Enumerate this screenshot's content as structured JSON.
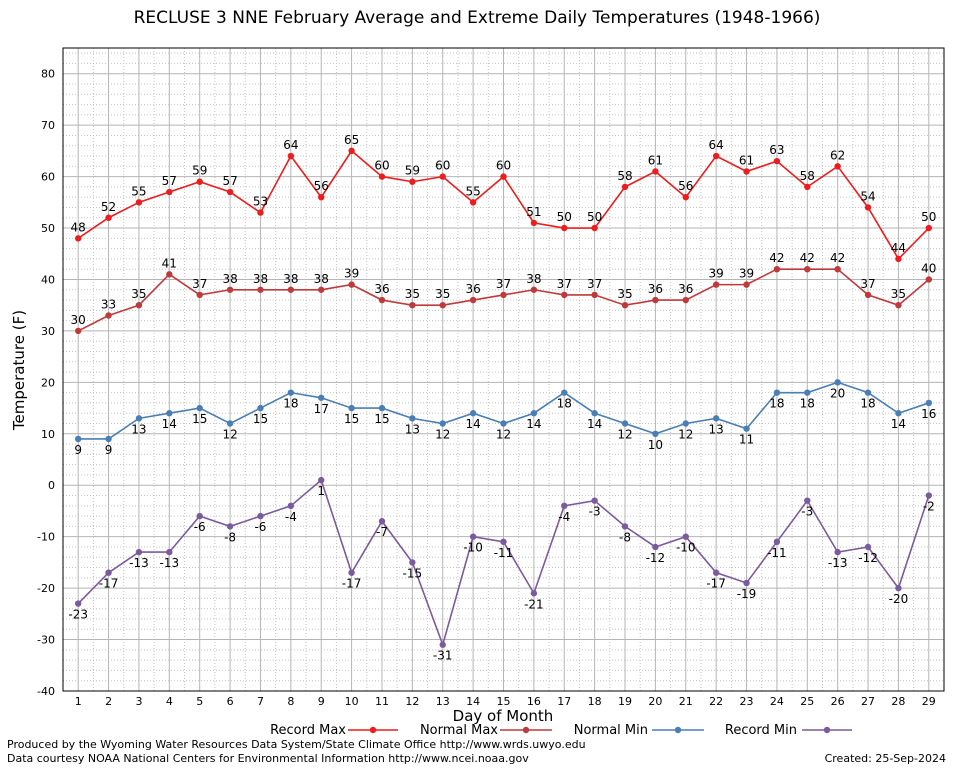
{
  "chart_data": {
    "type": "line",
    "title": "RECLUSE 3 NNE February Average and Extreme Daily Temperatures (1948-1966)",
    "xlabel": "Day of Month",
    "ylabel": "Temperature (F)",
    "ylim": [
      -40,
      85
    ],
    "yticks": [
      -40,
      -30,
      -20,
      -10,
      0,
      10,
      20,
      30,
      40,
      50,
      60,
      70,
      80
    ],
    "grid": true,
    "x": [
      1,
      2,
      3,
      4,
      5,
      6,
      7,
      8,
      9,
      10,
      11,
      12,
      13,
      14,
      15,
      16,
      17,
      18,
      19,
      20,
      21,
      22,
      23,
      24,
      25,
      26,
      27,
      28,
      29
    ],
    "series": [
      {
        "name": "Record Max",
        "color": "#ee1c1c",
        "label_pos": "above",
        "values": [
          48,
          52,
          55,
          57,
          59,
          57,
          53,
          64,
          56,
          65,
          60,
          59,
          60,
          55,
          60,
          51,
          50,
          50,
          58,
          61,
          56,
          64,
          61,
          63,
          58,
          62,
          54,
          44,
          50
        ]
      },
      {
        "name": "Normal Max",
        "color": "#c0393b",
        "label_pos": "above",
        "values": [
          30,
          33,
          35,
          41,
          37,
          38,
          38,
          38,
          38,
          39,
          36,
          35,
          35,
          36,
          37,
          38,
          37,
          37,
          35,
          36,
          36,
          39,
          39,
          42,
          42,
          42,
          37,
          35,
          40
        ]
      },
      {
        "name": "Normal Min",
        "color": "#4a7fb5",
        "label_pos": "below",
        "values": [
          9,
          9,
          13,
          14,
          15,
          12,
          15,
          18,
          17,
          15,
          15,
          13,
          12,
          14,
          12,
          14,
          18,
          14,
          12,
          10,
          12,
          13,
          11,
          18,
          18,
          20,
          18,
          14,
          16
        ]
      },
      {
        "name": "Record Min",
        "color": "#7b5a9e",
        "label_pos": "below",
        "values": [
          -23,
          -17,
          -13,
          -13,
          -6,
          -8,
          -6,
          -4,
          1,
          -17,
          -7,
          -15,
          -31,
          -10,
          -11,
          -21,
          -4,
          -3,
          -8,
          -12,
          -10,
          -17,
          -19,
          -11,
          -3,
          -13,
          -12,
          -20,
          -2
        ]
      }
    ]
  },
  "footer": {
    "credit_line1": "Produced by the Wyoming Water Resources Data System/State Climate Office http://www.wrds.uwyo.edu",
    "credit_line2": "Data courtesy NOAA National Centers for Environmental Information http://www.ncei.noaa.gov",
    "created": "Created:  25-Sep-2024"
  }
}
